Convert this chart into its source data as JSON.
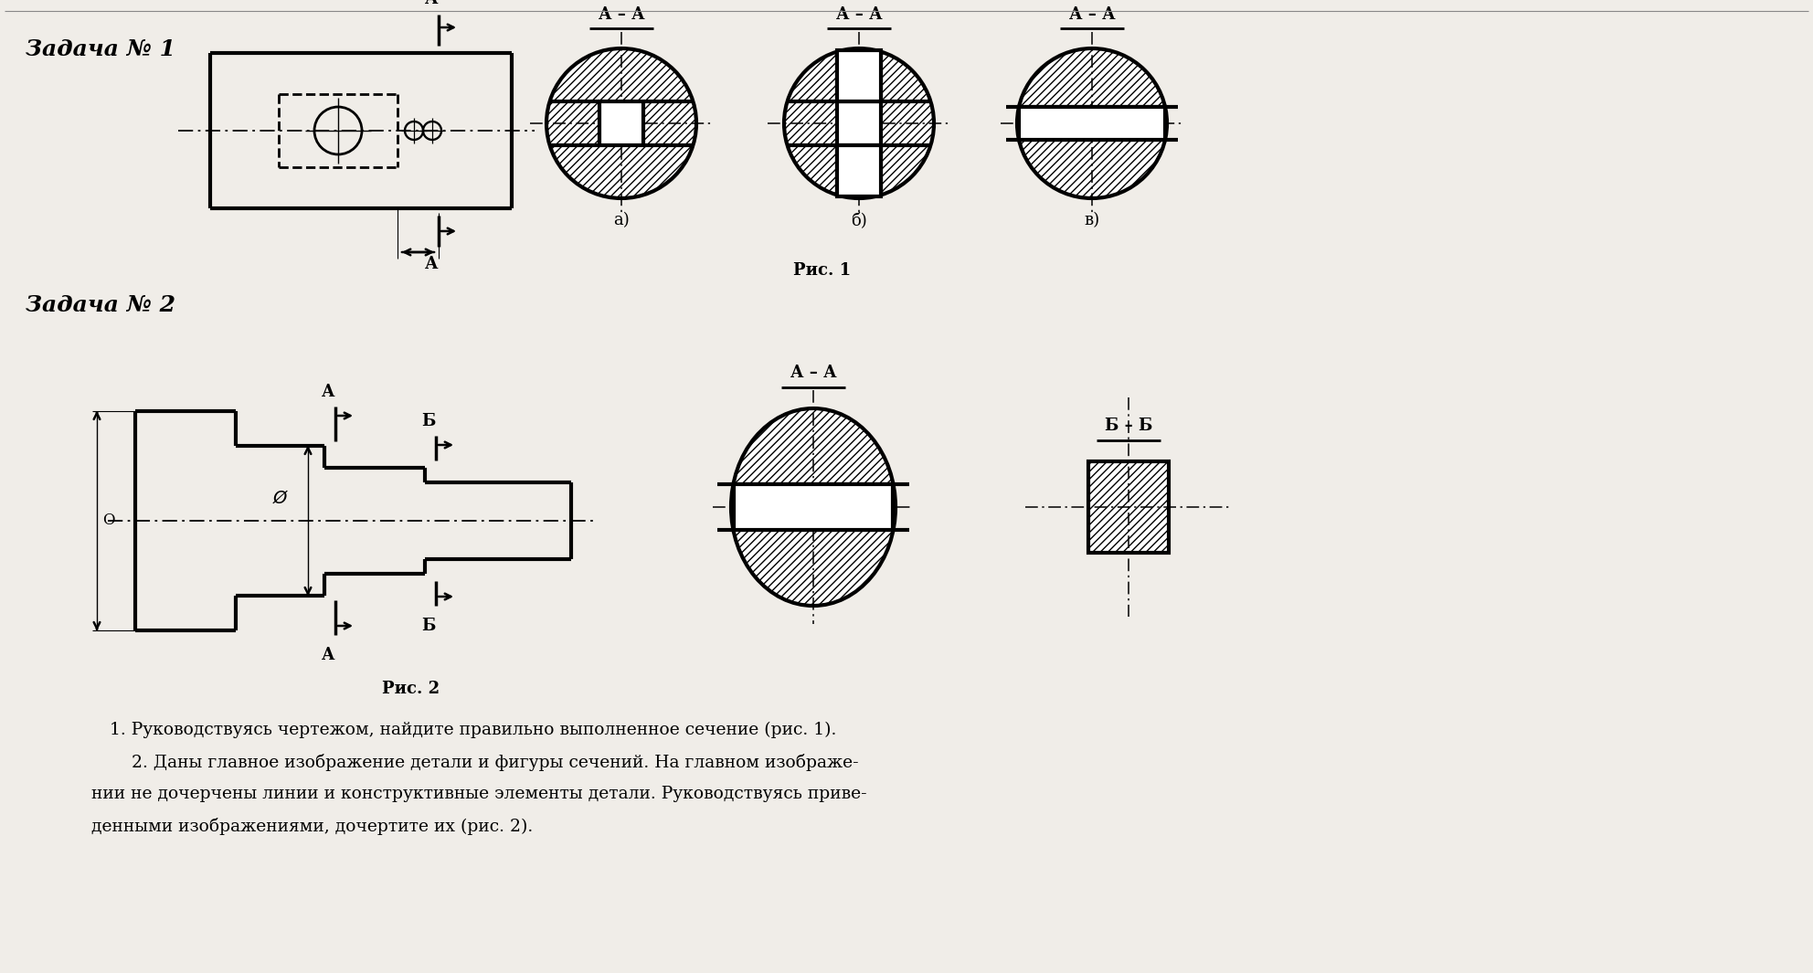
{
  "bg_color": "#f0ede8",
  "title_z1": "Задача № 1",
  "title_z2": "Задача № 2",
  "cap1": "Рис. 1",
  "cap2": "Рис. 2",
  "bottom_line1": "1. Руководствуясь чертежом, найдите правильно выполненное сечение (рис. 1).",
  "bottom_line2": "    2. Даны главное изображение детали и фигуры сечений. На главном изображе-",
  "bottom_line3": "нии не дочерчены линии и конструктивные элементы детали. Руководствуясь приве-",
  "bottom_line4": "денными изображениями, дочертите их (рис. 2).",
  "lw": 2.0,
  "tlw": 3.0
}
